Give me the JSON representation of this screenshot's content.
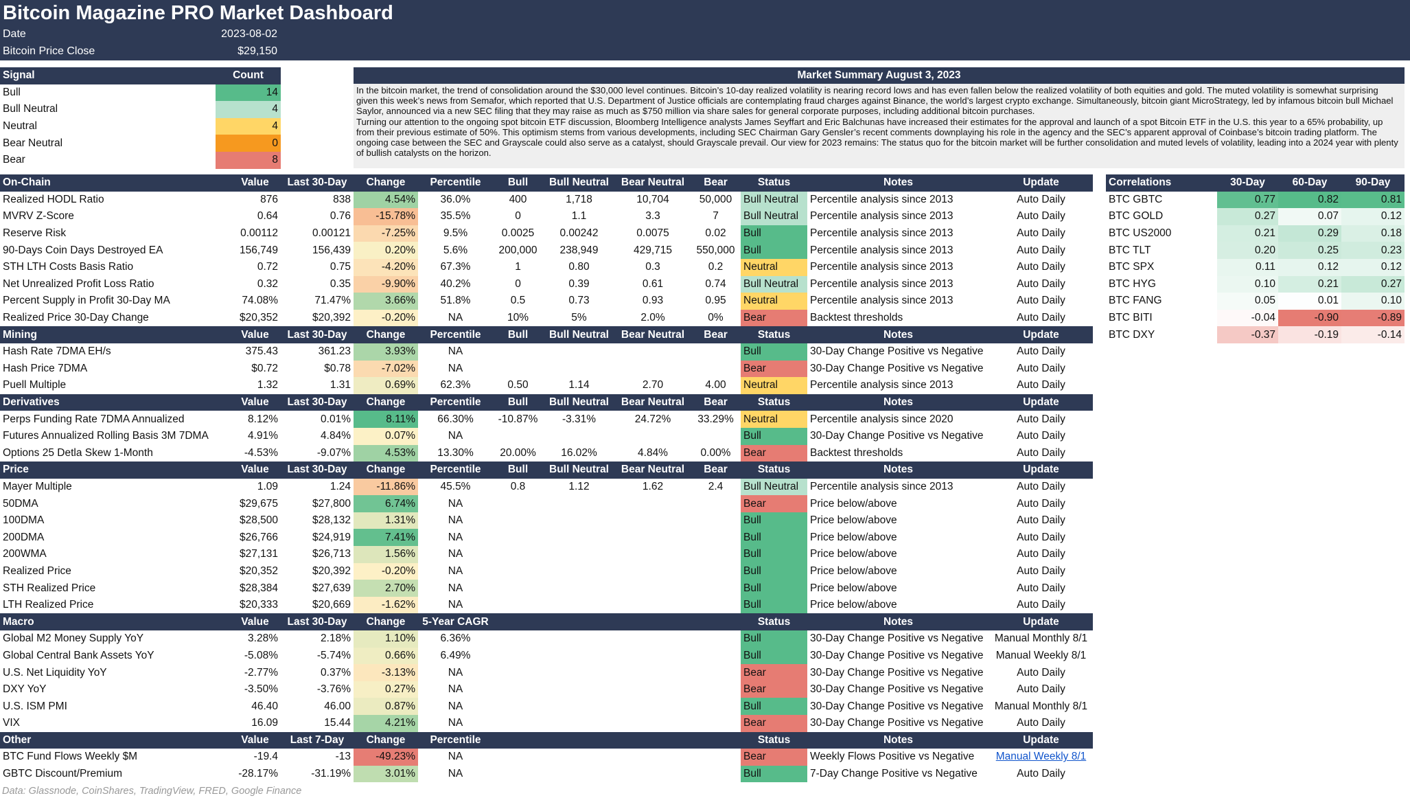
{
  "header": {
    "title": "Bitcoin Magazine PRO Market Dashboard",
    "fields": [
      {
        "label": "Date",
        "value": "2023-08-02"
      },
      {
        "label": "Bitcoin Price Close",
        "value": "$29,150"
      }
    ]
  },
  "signals": {
    "columns": [
      "Signal",
      "Count"
    ],
    "rows": [
      {
        "name": "Bull",
        "count": 14,
        "color": "#57bb8a"
      },
      {
        "name": "Bull Neutral",
        "count": 4,
        "color": "#b7e1cd"
      },
      {
        "name": "Neutral",
        "count": 4,
        "color": "#ffd666"
      },
      {
        "name": "Bear Neutral",
        "count": 0,
        "color": "#f6991f"
      },
      {
        "name": "Bear",
        "count": 8,
        "color": "#e67c73"
      }
    ]
  },
  "summary": {
    "title": "Market Summary August 3, 2023",
    "paragraphs": [
      "In the bitcoin market, the trend of consolidation around the $30,000 level continues. Bitcoin’s 10-day realized volatility is nearing record lows and has even fallen below the realized volatility of both equities and gold. The muted volatility is somewhat surprising given this week’s news from Semafor, which reported that U.S. Department of Justice officials are contemplating fraud charges against Binance, the world’s largest crypto exchange. Simultaneously, bitcoin giant MicroStrategy, led by infamous bitcoin bull Michael Saylor, announced via a new SEC filing that they may raise as much as $750 million via share sales for general corporate purposes, including additional bitcoin purchases.",
      "Turning our attention to the ongoing spot bitcoin ETF discussion, Bloomberg Intelligence analysts James Seyffart and Eric Balchunas have increased their estimates for the approval and launch of a spot Bitcoin ETF in the U.S. this year to a 65% probability, up from their previous estimate of 50%. This optimism stems from various developments, including SEC Chairman Gary Gensler’s recent comments downplaying his role in the agency and the SEC’s apparent approval of Coinbase’s bitcoin trading platform. The ongoing case between the SEC and Grayscale could also serve as a catalyst, should Grayscale prevail. Our view for 2023 remains: The status quo for the bitcoin market will be further consolidation and muted levels of volatility, leading into a 2024 year with plenty of bullish catalysts on the horizon."
    ]
  },
  "dashboard": {
    "status_colors": {
      "Bull": "#57bb8a",
      "Bull Neutral": "#b7e1cd",
      "Neutral": "#ffd666",
      "Bear": "#e67c73"
    },
    "sections": [
      {
        "columns": [
          "On-Chain",
          "Value",
          "Last 30-Day",
          "Change",
          "Percentile",
          "Bull",
          "Bull Neutral",
          "Bear Neutral",
          "Bear",
          "Status",
          "Notes",
          "Update"
        ],
        "rows": [
          [
            "Realized HODL Ratio",
            "876",
            "838",
            "4.54%",
            "36.0%",
            "400",
            "1,718",
            "10,704",
            "50,000",
            "Bull Neutral",
            "Percentile analysis since 2013",
            "Auto Daily"
          ],
          [
            "MVRV Z-Score",
            "0.64",
            "0.76",
            "-15.78%",
            "35.5%",
            "0",
            "1.1",
            "3.3",
            "7",
            "Bull Neutral",
            "Percentile analysis since 2013",
            "Auto Daily"
          ],
          [
            "Reserve Risk",
            "0.00112",
            "0.00121",
            "-7.25%",
            "9.5%",
            "0.0025",
            "0.00242",
            "0.0075",
            "0.02",
            "Bull",
            "Percentile analysis since 2013",
            "Auto Daily"
          ],
          [
            "90-Days Coin Days Destroyed EA",
            "156,749",
            "156,439",
            "0.20%",
            "5.6%",
            "200,000",
            "238,949",
            "429,715",
            "550,000",
            "Bull",
            "Percentile analysis since 2013",
            "Auto Daily"
          ],
          [
            "STH LTH Costs Basis Ratio",
            "0.72",
            "0.75",
            "-4.20%",
            "67.3%",
            "1",
            "0.80",
            "0.3",
            "0.2",
            "Neutral",
            "Percentile analysis since 2013",
            "Auto Daily"
          ],
          [
            "Net Unrealized Profit Loss Ratio",
            "0.32",
            "0.35",
            "-9.90%",
            "40.2%",
            "0",
            "0.39",
            "0.61",
            "0.74",
            "Bull Neutral",
            "Percentile analysis since 2013",
            "Auto Daily"
          ],
          [
            "Percent Supply in Profit 30-Day MA",
            "74.08%",
            "71.47%",
            "3.66%",
            "51.8%",
            "0.5",
            "0.73",
            "0.93",
            "0.95",
            "Neutral",
            "Percentile analysis since 2013",
            "Auto Daily"
          ],
          [
            "Realized Price 30-Day Change",
            "$20,352",
            "$20,392",
            "-0.20%",
            "NA",
            "10%",
            "5%",
            "2.0%",
            "0%",
            "Bear",
            "Backtest thresholds",
            "Auto Daily"
          ]
        ]
      },
      {
        "columns": [
          "Mining",
          "Value",
          "Last 30-Day",
          "Change",
          "Percentile",
          "Bull",
          "Bull Neutral",
          "Bear Neutral",
          "Bear",
          "Status",
          "Notes",
          "Update"
        ],
        "rows": [
          [
            "Hash Rate 7DMA EH/s",
            "375.43",
            "361.23",
            "3.93%",
            "NA",
            null,
            null,
            null,
            null,
            "Bull",
            "30-Day Change Positive vs Negative",
            "Auto Daily"
          ],
          [
            "Hash Price 7DMA",
            "$0.72",
            "$0.78",
            "-7.02%",
            "NA",
            null,
            null,
            null,
            null,
            "Bear",
            "30-Day Change Positive vs Negative",
            "Auto Daily"
          ],
          [
            "Puell Multiple",
            "1.32",
            "1.31",
            "0.69%",
            "62.3%",
            "0.50",
            "1.14",
            "2.70",
            "4.00",
            "Neutral",
            "Percentile analysis since 2013",
            "Auto Daily"
          ]
        ]
      },
      {
        "columns": [
          "Derivatives",
          "Value",
          "Last 30-Day",
          "Change",
          "Percentile",
          "Bull",
          "Bull Neutral",
          "Bear Neutral",
          "Bear",
          "Status",
          "Notes",
          "Update"
        ],
        "rows": [
          [
            "Perps Funding Rate 7DMA Annualized",
            "8.12%",
            "0.01%",
            "8.11%",
            "66.30%",
            "-10.87%",
            "-3.31%",
            "24.72%",
            "33.29%",
            "Neutral",
            "Percentile analysis since 2020",
            "Auto Daily"
          ],
          [
            "Futures Annualized Rolling Basis 3M 7DMA",
            "4.91%",
            "4.84%",
            "0.07%",
            "NA",
            null,
            null,
            null,
            null,
            "Bull",
            "30-Day Change Positive vs Negative",
            "Auto Daily"
          ],
          [
            "Options 25 Detla Skew 1-Month",
            "-4.53%",
            "-9.07%",
            "4.53%",
            "13.30%",
            "20.00%",
            "16.02%",
            "4.84%",
            "0.00%",
            "Bear",
            "Backtest thresholds",
            "Auto Daily"
          ]
        ]
      },
      {
        "columns": [
          "Price",
          "Value",
          "Last 30-Day",
          "Change",
          "Percentile",
          "Bull",
          "Bull Neutral",
          "Bear Neutral",
          "Bear",
          "Status",
          "Notes",
          "Update"
        ],
        "rows": [
          [
            "Mayer Multiple",
            "1.09",
            "1.24",
            "-11.86%",
            "45.5%",
            "0.8",
            "1.12",
            "1.62",
            "2.4",
            "Bull Neutral",
            "Percentile analysis since 2013",
            "Auto Daily"
          ],
          [
            "50DMA",
            "$29,675",
            "$27,800",
            "6.74%",
            "NA",
            null,
            null,
            null,
            null,
            "Bear",
            "Price below/above",
            "Auto Daily"
          ],
          [
            "100DMA",
            "$28,500",
            "$28,132",
            "1.31%",
            "NA",
            null,
            null,
            null,
            null,
            "Bull",
            "Price below/above",
            "Auto Daily"
          ],
          [
            "200DMA",
            "$26,766",
            "$24,919",
            "7.41%",
            "NA",
            null,
            null,
            null,
            null,
            "Bull",
            "Price below/above",
            "Auto Daily"
          ],
          [
            "200WMA",
            "$27,131",
            "$26,713",
            "1.56%",
            "NA",
            null,
            null,
            null,
            null,
            "Bull",
            "Price below/above",
            "Auto Daily"
          ],
          [
            "Realized Price",
            "$20,352",
            "$20,392",
            "-0.20%",
            "NA",
            null,
            null,
            null,
            null,
            "Bull",
            "Price below/above",
            "Auto Daily"
          ],
          [
            "STH Realized Price",
            "$28,384",
            "$27,639",
            "2.70%",
            "NA",
            null,
            null,
            null,
            null,
            "Bull",
            "Price below/above",
            "Auto Daily"
          ],
          [
            "LTH Realized Price",
            "$20,333",
            "$20,669",
            "-1.62%",
            "NA",
            null,
            null,
            null,
            null,
            "Bull",
            "Price below/above",
            "Auto Daily"
          ]
        ]
      },
      {
        "columns": [
          "Macro",
          "Value",
          "Last 30-Day",
          "Change",
          "5-Year CAGR",
          null,
          null,
          null,
          null,
          "Status",
          "Notes",
          "Update"
        ],
        "rows": [
          [
            "Global M2 Money Supply YoY",
            "3.28%",
            "2.18%",
            "1.10%",
            "6.36%",
            null,
            null,
            null,
            null,
            "Bull",
            "30-Day Change Positive vs Negative",
            "Manual Monthly 8/1"
          ],
          [
            "Global Central Bank Assets YoY",
            "-5.08%",
            "-5.74%",
            "0.66%",
            "6.49%",
            null,
            null,
            null,
            null,
            "Bull",
            "30-Day Change Positive vs Negative",
            "Manual Weekly 8/1"
          ],
          [
            "U.S. Net Liquidity YoY",
            "-2.77%",
            "0.37%",
            "-3.13%",
            "NA",
            null,
            null,
            null,
            null,
            "Bear",
            "30-Day Change Positive vs Negative",
            "Auto Daily"
          ],
          [
            "DXY YoY",
            "-3.50%",
            "-3.76%",
            "0.27%",
            "NA",
            null,
            null,
            null,
            null,
            "Bear",
            "30-Day Change Positive vs Negative",
            "Auto Daily"
          ],
          [
            "U.S. ISM PMI",
            "46.40",
            "46.00",
            "0.87%",
            "NA",
            null,
            null,
            null,
            null,
            "Bull",
            "30-Day Change Positive vs Negative",
            "Manual Monthly 8/1"
          ],
          [
            "VIX",
            "16.09",
            "15.44",
            "4.21%",
            "NA",
            null,
            null,
            null,
            null,
            "Bear",
            "30-Day Change Positive vs Negative",
            "Auto Daily"
          ]
        ]
      },
      {
        "columns": [
          "Other",
          "Value",
          "Last 7-Day",
          "Change",
          "Percentile",
          null,
          null,
          null,
          null,
          "Status",
          "Notes",
          "Update"
        ],
        "links": [
          [
            0,
            11
          ]
        ],
        "rows": [
          [
            "BTC Fund Flows Weekly $M",
            "-19.4",
            "-13",
            "-49.23%",
            "NA",
            null,
            null,
            null,
            null,
            "Bear",
            "Weekly Flows Positive vs Negative",
            "Manual Weekly 8/1"
          ],
          [
            "GBTC Discount/Premium",
            "-28.17%",
            "-31.19%",
            "3.01%",
            "NA",
            null,
            null,
            null,
            null,
            "Bull",
            "7-Day Change Positive vs Negative",
            "Auto Daily"
          ]
        ]
      }
    ]
  },
  "correlations": {
    "columns": [
      "Correlations",
      "30-Day",
      "60-Day",
      "90-Day"
    ],
    "rows": [
      [
        "BTC GBTC",
        "0.77",
        "0.82",
        "0.81"
      ],
      [
        "BTC GOLD",
        "0.27",
        "0.07",
        "0.12"
      ],
      [
        "BTC US2000",
        "0.21",
        "0.29",
        "0.18"
      ],
      [
        "BTC TLT",
        "0.20",
        "0.25",
        "0.23"
      ],
      [
        "BTC SPX",
        "0.11",
        "0.12",
        "0.12"
      ],
      [
        "BTC HYG",
        "0.10",
        "0.21",
        "0.27"
      ],
      [
        "BTC FANG",
        "0.05",
        "0.01",
        "0.10"
      ],
      [
        "BTC BITI",
        "-0.04",
        "-0.90",
        "-0.89"
      ],
      [
        "BTC DXY",
        "-0.37",
        "-0.19",
        "-0.14"
      ]
    ]
  },
  "footer": "Data: Glassnode, CoinShares, TradingView, FRED, Google Finance"
}
